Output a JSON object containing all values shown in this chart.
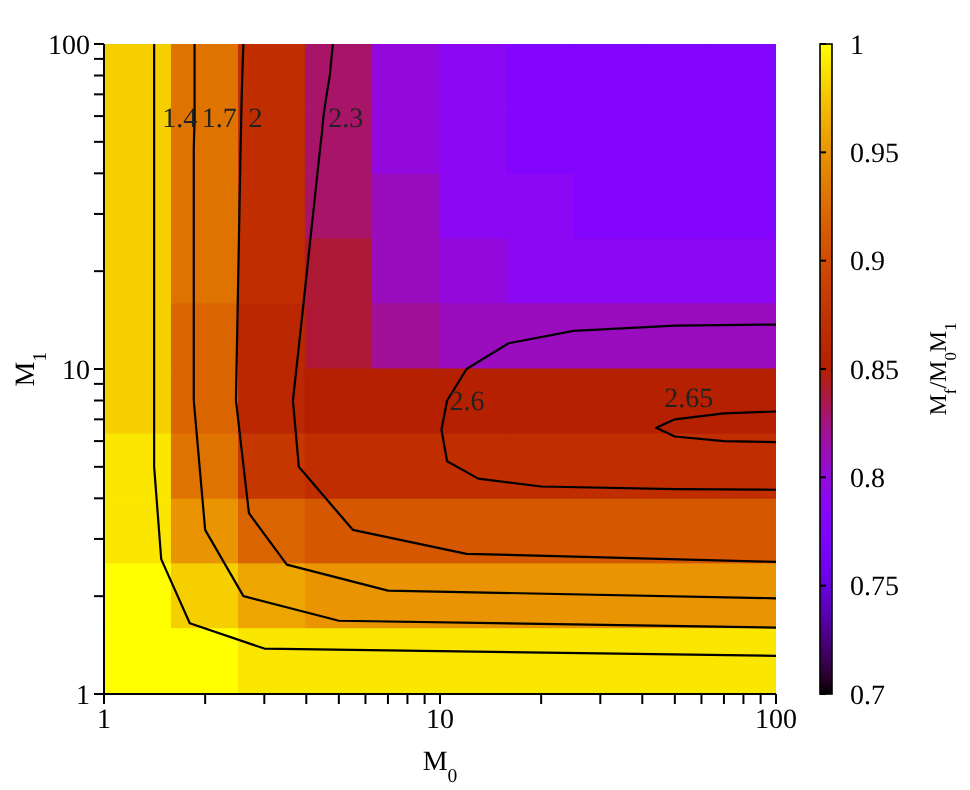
{
  "chart_data": {
    "type": "heatmap",
    "xlabel": "M$_{0}$",
    "ylabel": "M$_{1}$",
    "clabel": "M$_{f}$/M$_{0}$M$_{1}$",
    "log": "xy",
    "x": [
      1.26,
      2,
      3.16,
      5,
      7.94,
      12.6,
      20,
      31.6,
      50,
      79.4
    ],
    "y": [
      79.4,
      50,
      31.6,
      20,
      12.6,
      7.94,
      5,
      3.16,
      2,
      1.26
    ],
    "cells": [
      [
        0.98,
        0.93,
        0.87,
        0.83,
        0.8,
        0.79,
        0.78,
        0.78,
        0.78,
        0.78
      ],
      [
        0.98,
        0.93,
        0.87,
        0.83,
        0.8,
        0.79,
        0.78,
        0.78,
        0.78,
        0.78
      ],
      [
        0.98,
        0.93,
        0.87,
        0.83,
        0.81,
        0.79,
        0.79,
        0.78,
        0.78,
        0.78
      ],
      [
        0.98,
        0.93,
        0.87,
        0.84,
        0.81,
        0.8,
        0.79,
        0.79,
        0.79,
        0.79
      ],
      [
        0.98,
        0.92,
        0.86,
        0.84,
        0.82,
        0.81,
        0.81,
        0.81,
        0.81,
        0.81
      ],
      [
        0.98,
        0.92,
        0.86,
        0.85,
        0.85,
        0.85,
        0.85,
        0.85,
        0.85,
        0.85
      ],
      [
        0.99,
        0.93,
        0.88,
        0.87,
        0.87,
        0.87,
        0.87,
        0.87,
        0.87,
        0.87
      ],
      [
        0.99,
        0.95,
        0.92,
        0.91,
        0.91,
        0.91,
        0.91,
        0.91,
        0.91,
        0.91
      ],
      [
        1,
        0.98,
        0.96,
        0.95,
        0.95,
        0.95,
        0.95,
        0.95,
        0.95,
        0.95
      ],
      [
        1,
        1,
        0.99,
        0.99,
        0.99,
        0.99,
        0.99,
        0.99,
        0.99,
        0.99
      ]
    ],
    "clim": [
      0.7,
      1
    ],
    "cticks": [
      0.7,
      0.75,
      0.8,
      0.85,
      0.9,
      0.95,
      1
    ],
    "xlim": [
      1,
      100
    ],
    "ylim": [
      1,
      100
    ],
    "xticks": [
      1,
      {
        "value": 2,
        "label": null
      },
      {
        "value": 3,
        "label": null
      },
      {
        "value": 4,
        "label": null
      },
      {
        "value": 5,
        "label": null
      },
      {
        "value": 6,
        "label": null
      },
      {
        "value": 7,
        "label": null
      },
      {
        "value": 8,
        "label": null
      },
      {
        "value": 9,
        "label": null
      },
      10,
      {
        "value": 20,
        "label": null
      },
      {
        "value": 30,
        "label": null
      },
      {
        "value": 40,
        "label": null
      },
      {
        "value": 50,
        "label": null
      },
      {
        "value": 60,
        "label": null
      },
      {
        "value": 70,
        "label": null
      },
      {
        "value": 80,
        "label": null
      },
      {
        "value": 90,
        "label": null
      },
      100
    ],
    "yticks": [
      1,
      {
        "value": 2,
        "label": null
      },
      {
        "value": 3,
        "label": null
      },
      {
        "value": 4,
        "label": null
      },
      {
        "value": 5,
        "label": null
      },
      {
        "value": 6,
        "label": null
      },
      {
        "value": 7,
        "label": null
      },
      {
        "value": 8,
        "label": null
      },
      {
        "value": 9,
        "label": null
      },
      10,
      {
        "value": 20,
        "label": null
      },
      {
        "value": 30,
        "label": null
      },
      {
        "value": 40,
        "label": null
      },
      {
        "value": 50,
        "label": null
      },
      {
        "value": 60,
        "label": null
      },
      {
        "value": 70,
        "label": null
      },
      {
        "value": 80,
        "label": null
      },
      {
        "value": 90,
        "label": null
      },
      100
    ],
    "series": [
      {
        "type": "line",
        "name": "1.4",
        "color": "#000000",
        "x": [
          1.41,
          1.41,
          1.41,
          1.41,
          1.41,
          1.41,
          1.41,
          1.48,
          1.8,
          3,
          100
        ],
        "values": [
          100,
          90,
          80,
          70,
          58,
          48,
          5,
          2.6,
          1.65,
          1.38,
          1.31
        ]
      },
      {
        "type": "line",
        "name": "1.7",
        "color": "#000000",
        "x": [
          1.86,
          1.86,
          1.86,
          1.86,
          1.86,
          1.85,
          1.85,
          2,
          2.6,
          5,
          100
        ],
        "values": [
          100,
          90,
          80,
          70,
          58,
          48,
          8,
          3.2,
          2,
          1.68,
          1.6
        ]
      },
      {
        "type": "line",
        "name": "2",
        "color": "#000000",
        "x": [
          2.6,
          2.59,
          2.58,
          2.57,
          2.56,
          2.55,
          2.47,
          2.7,
          3.5,
          7,
          100
        ],
        "values": [
          100,
          90,
          80,
          70,
          58,
          48,
          8,
          3.6,
          2.5,
          2.08,
          1.97
        ]
      },
      {
        "type": "line",
        "name": "2.3",
        "color": "#000000",
        "x": [
          4.8,
          4.75,
          4.7,
          4.6,
          4.5,
          4.45,
          4.4,
          3.9,
          3.65,
          3.8,
          5.5,
          12,
          100
        ],
        "values": [
          100,
          90,
          80,
          70,
          60,
          53,
          48,
          15,
          8,
          5,
          3.2,
          2.7,
          2.55
        ]
      },
      {
        "type": "line",
        "name": "2.6",
        "color": "#000000",
        "x": [
          100,
          50,
          25,
          16,
          12,
          10.5,
          10.1,
          10.5,
          13,
          20,
          50,
          100
        ],
        "values": [
          13.7,
          13.6,
          13.1,
          12,
          10,
          8,
          6.5,
          5.2,
          4.6,
          4.35,
          4.27,
          4.25
        ]
      },
      {
        "type": "line",
        "name": "2.65",
        "color": "#000000",
        "x": [
          100,
          70,
          50,
          44,
          50,
          70,
          100
        ],
        "values": [
          7.4,
          7.3,
          7,
          6.6,
          6.2,
          6,
          5.96
        ]
      }
    ],
    "grid": false,
    "legend": false
  }
}
